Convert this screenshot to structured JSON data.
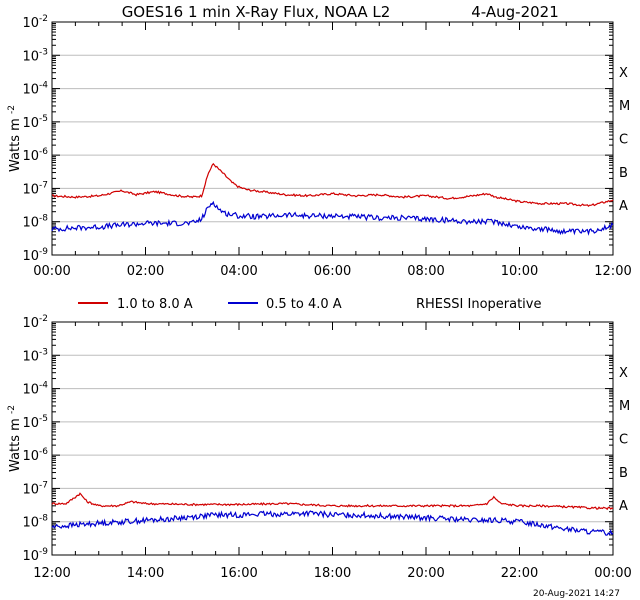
{
  "title": "GOES16 1 min X-Ray Flux, NOAA L2",
  "date": "4-Aug-2021",
  "legend": {
    "long_label": "1.0 to 8.0 A",
    "short_label": "0.5 to 4.0 A",
    "note": "RHESSI Inoperative"
  },
  "colors": {
    "long": "#d00000",
    "short": "#0000d0",
    "grid": "#bdbdbd"
  },
  "footer_stamp": "20-Aug-2021 14:27",
  "chart_data": [
    {
      "type": "line",
      "ylabel": "Watts m",
      "ylabel_exp": "-2",
      "yscale": "log",
      "ylim_exp": [
        -9,
        -2
      ],
      "y_tick_exps": [
        "-2",
        "-3",
        "-4",
        "-5",
        "-6",
        "-7",
        "-8",
        "-9"
      ],
      "x_hours": [
        0,
        2,
        4,
        6,
        8,
        10,
        12
      ],
      "x_tick_labels": [
        "00:00",
        "02:00",
        "04:00",
        "06:00",
        "08:00",
        "10:00",
        "12:00"
      ],
      "flare_classes": [
        "X",
        "M",
        "C",
        "B",
        "A"
      ],
      "series": [
        {
          "name": "1.0 to 8.0 A",
          "x_hours": [
            0,
            0.5,
            1.0,
            1.5,
            1.8,
            2.2,
            2.7,
            3.0,
            3.2,
            3.35,
            3.45,
            3.55,
            3.7,
            3.85,
            4.0,
            4.2,
            4.5,
            5.0,
            5.5,
            6.0,
            6.5,
            7.0,
            7.5,
            8.0,
            8.5,
            9.0,
            9.3,
            9.5,
            10.0,
            10.5,
            11.0,
            11.5,
            12.0
          ],
          "y": [
            6e-08,
            5.5e-08,
            6e-08,
            8.5e-08,
            6.5e-08,
            8e-08,
            6e-08,
            5.5e-08,
            6e-08,
            3e-07,
            5.5e-07,
            4e-07,
            2.5e-07,
            1.5e-07,
            1.1e-07,
            9e-08,
            8e-08,
            6.5e-08,
            6e-08,
            7e-08,
            6e-08,
            6.5e-08,
            5.5e-08,
            6e-08,
            5e-08,
            6e-08,
            7e-08,
            5.5e-08,
            4e-08,
            3.5e-08,
            3.5e-08,
            3e-08,
            4.5e-08
          ]
        },
        {
          "name": "0.5 to 4.0 A",
          "x_hours": [
            0,
            0.5,
            1.0,
            1.5,
            2.0,
            2.5,
            3.0,
            3.2,
            3.35,
            3.45,
            3.55,
            3.7,
            4.0,
            4.5,
            5.0,
            5.5,
            6.0,
            6.5,
            7.0,
            7.5,
            8.0,
            8.5,
            9.0,
            9.5,
            10.0,
            10.5,
            11.0,
            11.5,
            12.0
          ],
          "y": [
            6e-09,
            6.5e-09,
            7e-09,
            8e-09,
            9e-09,
            9e-09,
            9e-09,
            1.2e-08,
            2.8e-08,
            4e-08,
            2.5e-08,
            1.8e-08,
            1.5e-08,
            1.4e-08,
            1.6e-08,
            1.5e-08,
            1.5e-08,
            1.4e-08,
            1.3e-08,
            1.3e-08,
            1.2e-08,
            1.1e-08,
            1e-08,
            1e-08,
            7e-09,
            6e-09,
            5e-09,
            5e-09,
            8e-09
          ]
        }
      ]
    },
    {
      "type": "line",
      "ylabel": "Watts m",
      "ylabel_exp": "-2",
      "yscale": "log",
      "ylim_exp": [
        -9,
        -2
      ],
      "y_tick_exps": [
        "-2",
        "-3",
        "-4",
        "-5",
        "-6",
        "-7",
        "-8",
        "-9"
      ],
      "x_hours": [
        12,
        14,
        16,
        18,
        20,
        22,
        24
      ],
      "x_tick_labels": [
        "12:00",
        "14:00",
        "16:00",
        "18:00",
        "20:00",
        "22:00",
        "00:00"
      ],
      "flare_classes": [
        "X",
        "M",
        "C",
        "B",
        "A"
      ],
      "series": [
        {
          "name": "1.0 to 8.0 A",
          "x_hours": [
            12,
            12.3,
            12.6,
            12.75,
            13.0,
            13.4,
            13.7,
            14.0,
            15.0,
            16.0,
            17.0,
            18.0,
            19.0,
            20.0,
            21.0,
            21.3,
            21.45,
            21.6,
            22.0,
            22.5,
            23.0,
            23.5,
            24.0
          ],
          "y": [
            3.5e-08,
            3.5e-08,
            7e-08,
            4e-08,
            3e-08,
            3e-08,
            4e-08,
            3.5e-08,
            3.3e-08,
            3.3e-08,
            3.5e-08,
            3e-08,
            3e-08,
            3e-08,
            3e-08,
            3.5e-08,
            5.5e-08,
            3.5e-08,
            3e-08,
            3e-08,
            2.8e-08,
            2.6e-08,
            2.5e-08
          ]
        },
        {
          "name": "0.5 to 4.0 A",
          "x_hours": [
            12,
            12.5,
            13.0,
            13.5,
            14.0,
            14.5,
            15.0,
            15.5,
            16.0,
            16.5,
            17.0,
            17.5,
            18.0,
            18.5,
            19.0,
            19.5,
            20.0,
            20.5,
            21.0,
            21.5,
            22.0,
            22.5,
            23.0,
            23.5,
            24.0
          ],
          "y": [
            7e-09,
            8e-09,
            9e-09,
            1e-08,
            1.1e-08,
            1.2e-08,
            1.4e-08,
            1.6e-08,
            1.6e-08,
            1.7e-08,
            1.7e-08,
            1.8e-08,
            1.6e-08,
            1.6e-08,
            1.5e-08,
            1.4e-08,
            1.3e-08,
            1.2e-08,
            1.1e-08,
            1.1e-08,
            1e-08,
            8e-09,
            6e-09,
            5e-09,
            4.5e-09
          ]
        }
      ]
    }
  ]
}
